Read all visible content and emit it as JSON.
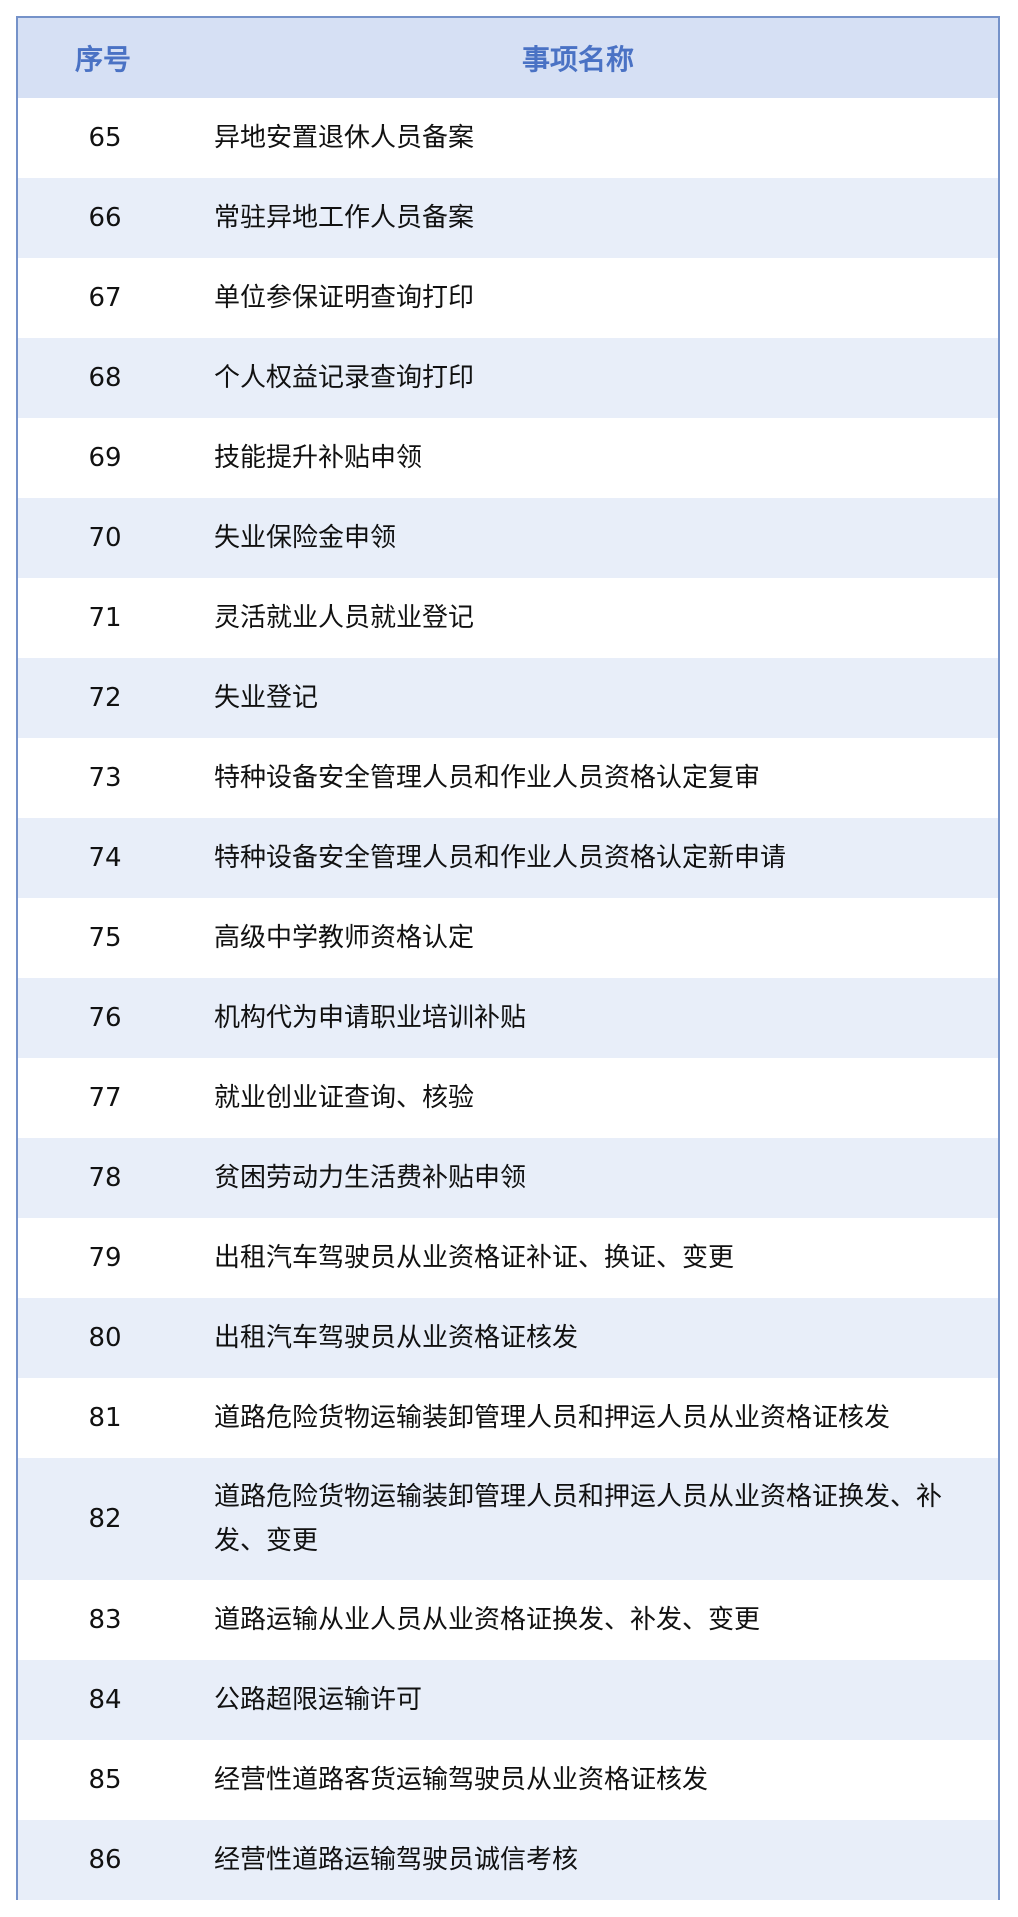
{
  "header": {
    "col_no": "序号",
    "col_name": "事项名称"
  },
  "rows": [
    {
      "no": "65",
      "name": "异地安置退休人员备案"
    },
    {
      "no": "66",
      "name": "常驻异地工作人员备案"
    },
    {
      "no": "67",
      "name": "单位参保证明查询打印"
    },
    {
      "no": "68",
      "name": "个人权益记录查询打印"
    },
    {
      "no": "69",
      "name": "技能提升补贴申领"
    },
    {
      "no": "70",
      "name": "失业保险金申领"
    },
    {
      "no": "71",
      "name": "灵活就业人员就业登记"
    },
    {
      "no": "72",
      "name": "失业登记"
    },
    {
      "no": "73",
      "name": "特种设备安全管理人员和作业人员资格认定复审"
    },
    {
      "no": "74",
      "name": "特种设备安全管理人员和作业人员资格认定新申请"
    },
    {
      "no": "75",
      "name": "高级中学教师资格认定"
    },
    {
      "no": "76",
      "name": "机构代为申请职业培训补贴"
    },
    {
      "no": "77",
      "name": "就业创业证查询、核验"
    },
    {
      "no": "78",
      "name": "贫困劳动力生活费补贴申领"
    },
    {
      "no": "79",
      "name": "出租汽车驾驶员从业资格证补证、换证、变更"
    },
    {
      "no": "80",
      "name": "出租汽车驾驶员从业资格证核发"
    },
    {
      "no": "81",
      "name": "道路危险货物运输装卸管理人员和押运人员从业资格证核发"
    },
    {
      "no": "82",
      "name": "道路危险货物运输装卸管理人员和押运人员从业资格证换发、补发、变更"
    },
    {
      "no": "83",
      "name": "道路运输从业人员从业资格证换发、补发、变更"
    },
    {
      "no": "84",
      "name": "公路超限运输许可"
    },
    {
      "no": "85",
      "name": "经营性道路客货运输驾驶员从业资格证核发"
    },
    {
      "no": "86",
      "name": "经营性道路运输驾驶员诚信考核"
    }
  ],
  "colors": {
    "header_bg": "#d6e0f4",
    "header_text": "#4a72c4",
    "alt_row": "#e8eef9",
    "border": "#7592c9"
  }
}
